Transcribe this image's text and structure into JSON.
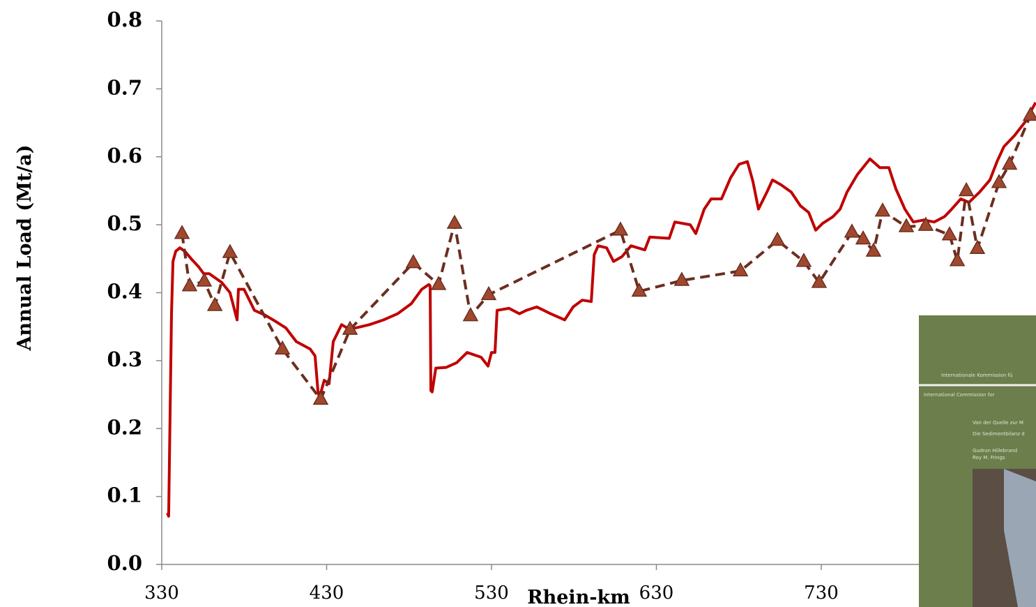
{
  "chart_data": {
    "type": "line",
    "y_label": "Annual Load (Mt/a)",
    "x_label": "Rhein-km",
    "xlim": [
      330,
      860
    ],
    "xticks": [
      330,
      430,
      530,
      630,
      730
    ],
    "ylim": [
      0,
      0.8
    ],
    "yticks": [
      {
        "value": 0,
        "label": "0.0"
      },
      0.1,
      0.2,
      0.3,
      0.4,
      0.5,
      0.6,
      0.7,
      0.8
    ],
    "series": [
      {
        "color": "#c00000",
        "line_style": "solid",
        "marker": "none",
        "x": [
          333.4,
          334.2,
          335.9,
          336.8,
          338.5,
          341,
          344,
          348.2,
          352.4,
          355.4,
          358.8,
          366.4,
          371.4,
          375.7,
          376.5,
          379.9,
          386.2,
          392.6,
          398.9,
          405.3,
          411.6,
          420,
          423,
          424.7,
          425.6,
          428.5,
          431.5,
          434,
          439.1,
          442.5,
          447.5,
          456,
          464.5,
          473,
          481.4,
          487.7,
          492,
          492.8,
          493.2,
          494,
          496.2,
          502.5,
          508.9,
          515.2,
          523.7,
          527.9,
          530,
          532.1,
          533.4,
          540.6,
          546.9,
          551.1,
          557.5,
          565.9,
          574.4,
          579.5,
          585,
          590.5,
          592.3,
          594.7,
          599.8,
          604,
          609.1,
          614.6,
          623,
          626,
          637.8,
          641.2,
          650.5,
          653.9,
          659,
          663.2,
          669.5,
          675,
          680.1,
          685.2,
          688.5,
          691.9,
          697,
          700.4,
          705.5,
          711.8,
          717.3,
          722.4,
          726.6,
          730.8,
          737.2,
          741.4,
          745.6,
          751.9,
          759.5,
          765.5,
          771,
          775.2,
          780.7,
          785.8,
          792.2,
          798.5,
          804.8,
          809.1,
          814.6,
          819.6,
          826,
          832.3,
          836.6,
          840.8,
          847.1,
          853.5,
          860
        ],
        "values": [
          0.076,
          0.071,
          0.369,
          0.446,
          0.461,
          0.466,
          0.461,
          0.449,
          0.438,
          0.428,
          0.428,
          0.415,
          0.4,
          0.36,
          0.405,
          0.405,
          0.374,
          0.367,
          0.358,
          0.348,
          0.328,
          0.317,
          0.307,
          0.256,
          0.245,
          0.271,
          0.266,
          0.328,
          0.353,
          0.348,
          0.348,
          0.353,
          0.36,
          0.369,
          0.384,
          0.405,
          0.412,
          0.41,
          0.256,
          0.254,
          0.289,
          0.29,
          0.297,
          0.312,
          0.305,
          0.292,
          0.312,
          0.312,
          0.374,
          0.377,
          0.369,
          0.374,
          0.379,
          0.369,
          0.36,
          0.379,
          0.389,
          0.387,
          0.456,
          0.469,
          0.466,
          0.446,
          0.453,
          0.469,
          0.463,
          0.482,
          0.48,
          0.504,
          0.5,
          0.487,
          0.523,
          0.538,
          0.538,
          0.569,
          0.589,
          0.593,
          0.564,
          0.523,
          0.548,
          0.566,
          0.559,
          0.548,
          0.528,
          0.518,
          0.492,
          0.502,
          0.512,
          0.523,
          0.548,
          0.574,
          0.597,
          0.584,
          0.584,
          0.553,
          0.523,
          0.504,
          0.507,
          0.504,
          0.512,
          0.523,
          0.538,
          0.533,
          0.548,
          0.566,
          0.593,
          0.615,
          0.631,
          0.651,
          0.68
        ]
      },
      {
        "color": "#6b2e1f",
        "marker_color": "#a0482e",
        "line_style": "dashed",
        "marker": "triangle",
        "x": [
          342.3,
          346.9,
          355.8,
          362.2,
          371.4,
          403.2,
          426.4,
          444.2,
          482.6,
          497.9,
          507.6,
          517.3,
          528.3,
          608.2,
          619.6,
          645.4,
          681,
          703.4,
          719.4,
          728.7,
          748.6,
          755.4,
          761.7,
          767.2,
          781.6,
          793.4,
          807.8,
          812.5,
          818,
          824.7,
          837.8,
          844.2,
          856.9
        ],
        "values": [
          0.487,
          0.41,
          0.417,
          0.381,
          0.459,
          0.317,
          0.243,
          0.346,
          0.444,
          0.412,
          0.502,
          0.366,
          0.397,
          0.492,
          0.402,
          0.418,
          0.432,
          0.477,
          0.446,
          0.415,
          0.489,
          0.479,
          0.461,
          0.52,
          0.497,
          0.499,
          0.485,
          0.447,
          0.55,
          0.465,
          0.562,
          0.589,
          0.661
        ]
      }
    ]
  },
  "inset": {
    "lines": [
      "Internationale Kommission fü",
      "International Commission for",
      "Von der Quelle zur M",
      "Die Sedimentbilanz d",
      "Gudrun Hillebrand",
      "Roy M. Frings"
    ]
  }
}
